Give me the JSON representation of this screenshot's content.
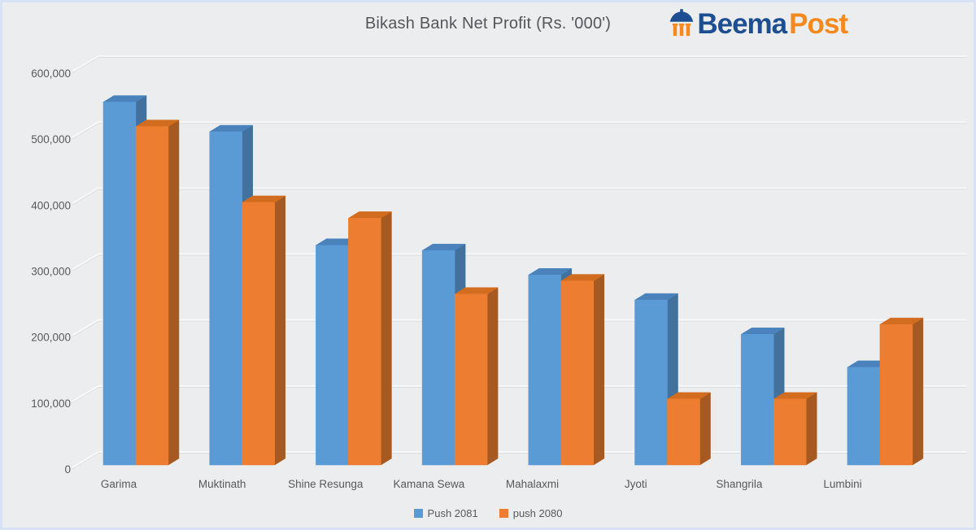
{
  "page": {
    "background_color": "#ebedef",
    "border_color": "#d7e2f4"
  },
  "header": {
    "logo": {
      "icon": "umbrella-pavilion-icon",
      "text_primary": "Beema",
      "text_secondary": "Post",
      "primary_color": "#1d4e91",
      "secondary_color": "#f6891e"
    }
  },
  "chart_data": {
    "type": "bar",
    "style": "3d-clustered",
    "title": "Bikash Bank Net Profit (Rs. '000')",
    "categories": [
      "Garima",
      "Muktinath",
      "Shine Resunga",
      "Kamana Sewa",
      "Mahalaxmi",
      "Jyoti",
      "Shangrila",
      "Lumbini"
    ],
    "series": [
      {
        "name": "Push 2081",
        "color": "#5B9BD5",
        "color_top": "#4A82BC",
        "color_side": "#41719C",
        "values": [
          550000,
          505000,
          333000,
          325000,
          288000,
          250000,
          198000,
          148000
        ]
      },
      {
        "name": "push 2080",
        "color": "#ED7D31",
        "color_top": "#D26D1F",
        "color_side": "#A65A21",
        "values": [
          513000,
          398000,
          374000,
          259000,
          279000,
          100000,
          100000,
          213000
        ]
      }
    ],
    "y_axis": {
      "min": 0,
      "max": 600000,
      "step": 100000,
      "tick_labels": [
        "0",
        "100,000",
        "200,000",
        "300,000",
        "400,000",
        "500,000",
        "600,000"
      ]
    },
    "gridlines": true,
    "legend_position": "bottom",
    "text_color": "#595959"
  }
}
